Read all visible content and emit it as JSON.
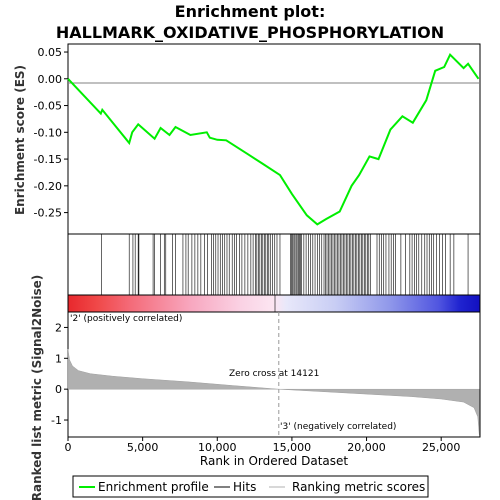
{
  "title_line1": "Enrichment plot:",
  "title_line2": "HALLMARK_OXIDATIVE_PHOSPHORYLATION",
  "legend": {
    "enrichment_profile": "Enrichment profile",
    "hits": "Hits",
    "ranking_metric": "Ranking metric scores"
  },
  "colors": {
    "enrichment": "#00ee00",
    "hits": "#000000",
    "metric": "#b0b0b0",
    "pos_label": "#ee0000",
    "neg_label": "#0000dd"
  },
  "chart_data": [
    {
      "type": "line",
      "ylabel": "Enrichment score (ES)",
      "xlim": [
        0,
        27600
      ],
      "ylim": [
        -0.29,
        0.065
      ],
      "yticks": [
        0.05,
        0.0,
        -0.05,
        -0.1,
        -0.15,
        -0.2,
        -0.25
      ],
      "ytick_labels": [
        "0.05",
        "0.00",
        "-0.05",
        "-0.10",
        "-0.15",
        "-0.20",
        "-0.25"
      ],
      "grid": false,
      "series": [
        {
          "x": [
            0,
            2200,
            2300,
            4100,
            4300,
            4700,
            5800,
            6200,
            6800,
            7200,
            8200,
            9300,
            9500,
            10000,
            10600,
            12000,
            13000,
            14200,
            15000,
            16000,
            16700,
            17300,
            18200,
            19000,
            19500,
            20200,
            20800,
            21600,
            22400,
            23100,
            24000,
            24600,
            25200,
            25600,
            26500,
            26800,
            27500
          ],
          "y": [
            0.0,
            -0.065,
            -0.058,
            -0.12,
            -0.1,
            -0.085,
            -0.112,
            -0.092,
            -0.105,
            -0.09,
            -0.105,
            -0.1,
            -0.11,
            -0.114,
            -0.115,
            -0.14,
            -0.158,
            -0.18,
            -0.215,
            -0.255,
            -0.272,
            -0.262,
            -0.248,
            -0.2,
            -0.18,
            -0.145,
            -0.15,
            -0.095,
            -0.07,
            -0.082,
            -0.04,
            0.015,
            0.022,
            0.045,
            0.02,
            0.028,
            0.0
          ]
        }
      ]
    },
    {
      "type": "rug",
      "hits": [
        2250,
        4100,
        4350,
        4500,
        4700,
        4750,
        5700,
        5800,
        6200,
        6450,
        6550,
        7000,
        7200,
        7700,
        7900,
        8050,
        8300,
        8500,
        8700,
        8900,
        9150,
        9350,
        9600,
        9750,
        9900,
        10050,
        10200,
        10350,
        10500,
        10650,
        10800,
        11000,
        11150,
        11300,
        11500,
        11650,
        11850,
        12050,
        12250,
        12400,
        12550,
        12650,
        12750,
        12850,
        12950,
        13050,
        13150,
        13250,
        13350,
        13450,
        13550,
        13700,
        13850,
        14000,
        14200,
        14900,
        14980,
        15050,
        15130,
        15200,
        15280,
        15350,
        15430,
        15500,
        15580,
        15650,
        15800,
        15950,
        16100,
        16250,
        16400,
        16550,
        16700,
        16850,
        17000,
        17150,
        17250,
        17350,
        17450,
        17550,
        17650,
        17750,
        17850,
        17950,
        18050,
        18150,
        18250,
        18350,
        18450,
        18550,
        18650,
        18750,
        18850,
        18950,
        19050,
        19150,
        19250,
        19350,
        19450,
        19550,
        19650,
        19750,
        19850,
        19950,
        20050,
        20150,
        20250,
        20700,
        20850,
        21000,
        21150,
        21300,
        21500,
        21650,
        21800,
        21950,
        22300,
        22600,
        22900,
        23050,
        23200,
        23350,
        23500,
        23700,
        23900,
        24050,
        24200,
        24350,
        24500,
        24700,
        24900,
        25100,
        25300,
        25600,
        25850,
        26800
      ]
    },
    {
      "type": "area",
      "ylabel": "Ranked list metric (Signal2Noise)",
      "xlabel": "Rank in Ordered Dataset",
      "xlim": [
        0,
        27600
      ],
      "ylim": [
        -1.55,
        2.5
      ],
      "xticks": [
        0,
        5000,
        10000,
        15000,
        20000,
        25000
      ],
      "xtick_labels": [
        "0",
        "5,000",
        "10,000",
        "15,000",
        "20,000",
        "25,000"
      ],
      "yticks": [
        2,
        1,
        0,
        -1
      ],
      "ytick_labels": [
        "2",
        "1",
        "0",
        "-1"
      ],
      "x": [
        0,
        100,
        300,
        700,
        1500,
        3000,
        5000,
        8000,
        11000,
        14121,
        17000,
        20000,
        23000,
        25000,
        26500,
        27200,
        27450,
        27550
      ],
      "y": [
        1.3,
        0.95,
        0.75,
        0.6,
        0.5,
        0.42,
        0.34,
        0.24,
        0.12,
        0.0,
        -0.08,
        -0.16,
        -0.24,
        -0.32,
        -0.42,
        -0.6,
        -0.9,
        -1.5
      ],
      "zero_cross_label": "Zero cross at 14121",
      "pos_label": "'2' (positively correlated)",
      "neg_label": "'3' (negatively correlated)"
    }
  ]
}
